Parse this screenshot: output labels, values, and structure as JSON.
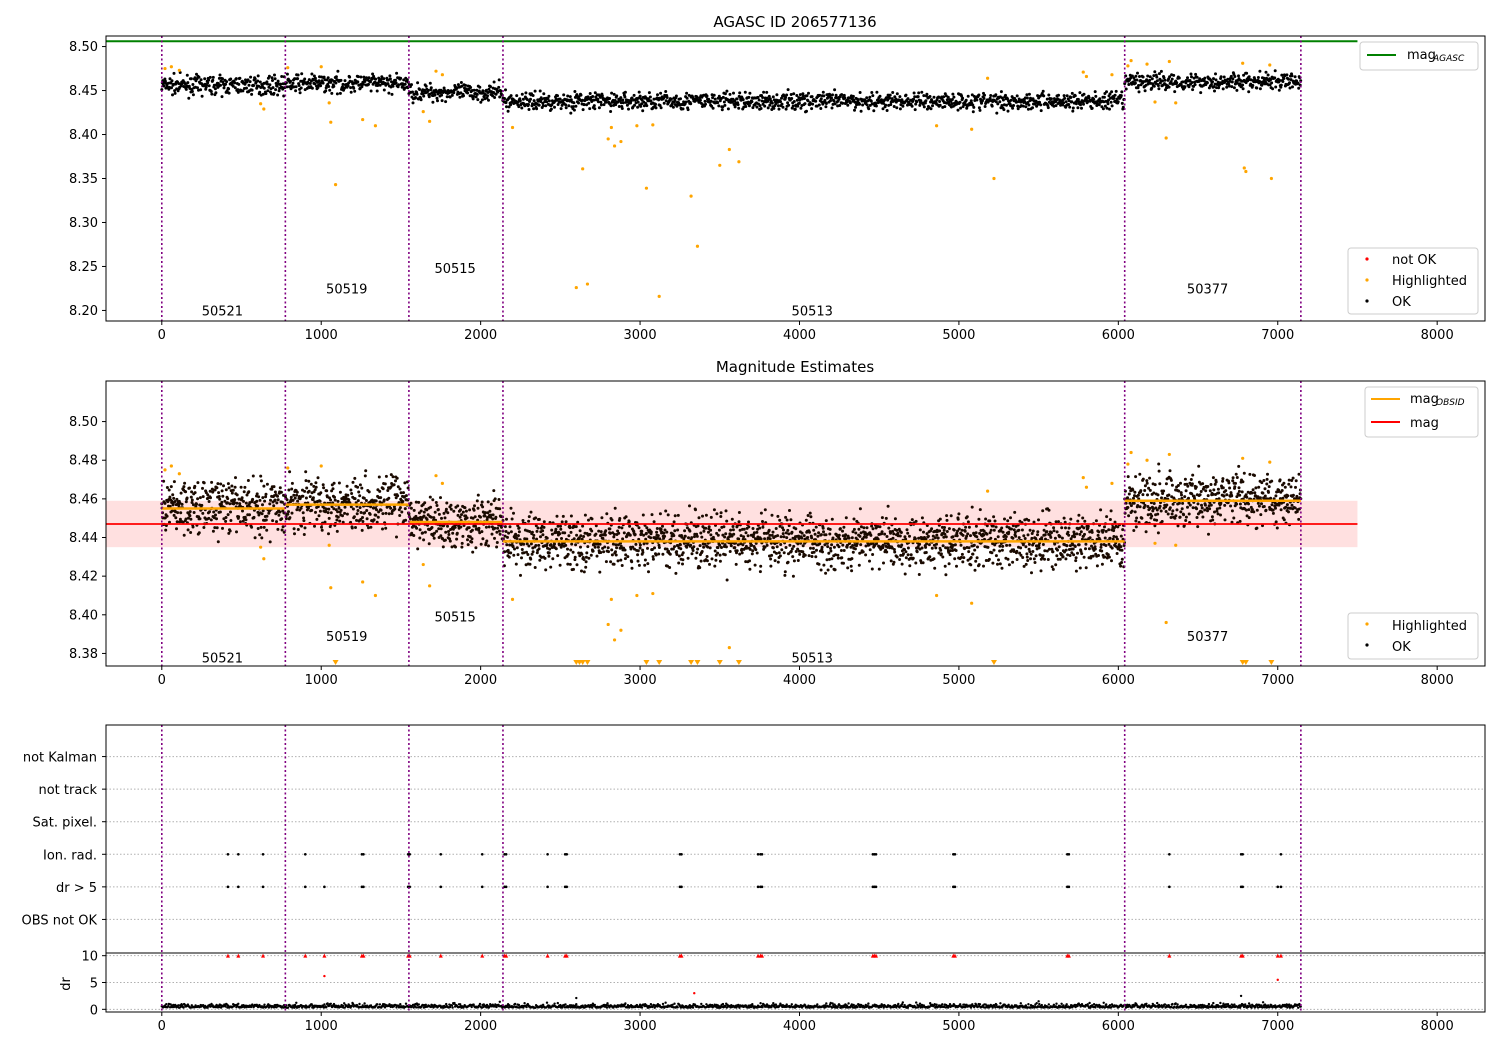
{
  "chart_data": [
    {
      "type": "scatter",
      "title": "AGASC ID 206577136",
      "xlim": [
        -350,
        8300
      ],
      "ylim": [
        8.188,
        8.512
      ],
      "x_ticks": [
        0,
        1000,
        2000,
        3000,
        4000,
        5000,
        6000,
        7000,
        8000
      ],
      "y_ticks": [
        8.2,
        8.25,
        8.3,
        8.35,
        8.4,
        8.45,
        8.5
      ],
      "mag_agasc": {
        "value": 8.506,
        "x_range": [
          -350,
          7500
        ],
        "color": "#008000"
      },
      "obsid_boundaries": [
        0,
        775,
        1550,
        2140,
        6040,
        7145
      ],
      "obsid_labels": [
        {
          "text": "50521",
          "x": 380,
          "y": 8.2
        },
        {
          "text": "50519",
          "x": 1160,
          "y": 8.225
        },
        {
          "text": "50515",
          "x": 1840,
          "y": 8.248
        },
        {
          "text": "50513",
          "x": 4080,
          "y": 8.2
        },
        {
          "text": "50377",
          "x": 6560,
          "y": 8.225
        }
      ],
      "legend_top": [
        {
          "label": "mag",
          "sub": "AGASC",
          "kind": "line",
          "color": "#008000"
        }
      ],
      "legend_bottom": [
        {
          "label": "not OK",
          "kind": "dot",
          "color": "#ff0000"
        },
        {
          "label": "Highlighted",
          "kind": "dot",
          "color": "#ffa500"
        },
        {
          "label": "OK",
          "kind": "dot",
          "color": "#000000"
        }
      ],
      "ok_segments": [
        {
          "x": [
            0,
            775
          ],
          "mean": 8.456,
          "spread": 0.009
        },
        {
          "x": [
            775,
            1550
          ],
          "mean": 8.458,
          "spread": 0.009
        },
        {
          "x": [
            1550,
            2140
          ],
          "mean": 8.448,
          "spread": 0.009
        },
        {
          "x": [
            2140,
            6040
          ],
          "mean": 8.438,
          "spread": 0.009
        },
        {
          "x": [
            6040,
            7145
          ],
          "mean": 8.46,
          "spread": 0.009
        }
      ],
      "highlighted_points": [
        [
          20,
          8.475
        ],
        [
          60,
          8.477
        ],
        [
          110,
          8.473
        ],
        [
          620,
          8.435
        ],
        [
          640,
          8.429
        ],
        [
          790,
          8.476
        ],
        [
          1000,
          8.477
        ],
        [
          1050,
          8.436
        ],
        [
          1060,
          8.414
        ],
        [
          1090,
          8.343
        ],
        [
          1260,
          8.417
        ],
        [
          1340,
          8.41
        ],
        [
          1640,
          8.426
        ],
        [
          1680,
          8.415
        ],
        [
          1720,
          8.472
        ],
        [
          1760,
          8.468
        ],
        [
          2200,
          8.408
        ],
        [
          2600,
          8.226
        ],
        [
          2640,
          8.361
        ],
        [
          2670,
          8.23
        ],
        [
          2800,
          8.395
        ],
        [
          2820,
          8.408
        ],
        [
          2840,
          8.387
        ],
        [
          2880,
          8.392
        ],
        [
          2980,
          8.41
        ],
        [
          3040,
          8.339
        ],
        [
          3080,
          8.411
        ],
        [
          3120,
          8.216
        ],
        [
          3320,
          8.33
        ],
        [
          3360,
          8.273
        ],
        [
          3500,
          8.365
        ],
        [
          3560,
          8.383
        ],
        [
          3620,
          8.369
        ],
        [
          4860,
          8.41
        ],
        [
          5080,
          8.406
        ],
        [
          5180,
          8.464
        ],
        [
          5220,
          8.35
        ],
        [
          5780,
          8.471
        ],
        [
          5800,
          8.466
        ],
        [
          5960,
          8.468
        ],
        [
          6060,
          8.478
        ],
        [
          6080,
          8.484
        ],
        [
          6180,
          8.48
        ],
        [
          6230,
          8.437
        ],
        [
          6300,
          8.396
        ],
        [
          6320,
          8.483
        ],
        [
          6360,
          8.436
        ],
        [
          6780,
          8.481
        ],
        [
          6790,
          8.362
        ],
        [
          6800,
          8.358
        ],
        [
          6950,
          8.479
        ],
        [
          6960,
          8.35
        ]
      ]
    },
    {
      "type": "scatter",
      "title": "Magnitude Estimates",
      "xlim": [
        -350,
        8300
      ],
      "ylim": [
        8.3735,
        8.521
      ],
      "x_ticks": [
        0,
        1000,
        2000,
        3000,
        4000,
        5000,
        6000,
        7000,
        8000
      ],
      "y_ticks": [
        8.38,
        8.4,
        8.42,
        8.44,
        8.46,
        8.48,
        8.5
      ],
      "mag": {
        "value": 8.447,
        "band": [
          8.435,
          8.459
        ],
        "x_range": [
          -350,
          7500
        ],
        "color": "#ff0000"
      },
      "mag_obsid": [
        {
          "x": [
            0,
            775
          ],
          "value": 8.455
        },
        {
          "x": [
            775,
            1550
          ],
          "value": 8.457
        },
        {
          "x": [
            1550,
            2140
          ],
          "value": 8.448
        },
        {
          "x": [
            2140,
            6040
          ],
          "value": 8.438
        },
        {
          "x": [
            6040,
            7145
          ],
          "value": 8.459
        }
      ],
      "mag_obsid_color": "#ffa500",
      "obsid_labels": [
        {
          "text": "50521",
          "x": 380,
          "y": 8.378
        },
        {
          "text": "50519",
          "x": 1160,
          "y": 8.389
        },
        {
          "text": "50515",
          "x": 1840,
          "y": 8.399
        },
        {
          "text": "50513",
          "x": 4080,
          "y": 8.378
        },
        {
          "text": "50377",
          "x": 6560,
          "y": 8.389
        }
      ],
      "legend_top": [
        {
          "label": "mag",
          "sub": "OBSID",
          "kind": "line",
          "color": "#ffa500"
        },
        {
          "label": "mag",
          "sub": "",
          "kind": "line",
          "color": "#ff0000"
        }
      ],
      "legend_bottom": [
        {
          "label": "Highlighted",
          "kind": "dot",
          "color": "#ffa500"
        },
        {
          "label": "OK",
          "kind": "dot",
          "color": "#000000"
        }
      ],
      "clipped_markers_x": [
        1090,
        2600,
        2620,
        2640,
        2670,
        3040,
        3120,
        3320,
        3360,
        3500,
        3620,
        5220,
        6780,
        6800,
        6960
      ]
    },
    {
      "type": "scatter",
      "title": "",
      "xlim": [
        -350,
        8300
      ],
      "x_ticks": [
        0,
        1000,
        2000,
        3000,
        4000,
        5000,
        6000,
        7000,
        8000
      ],
      "flag_rows": [
        "not Kalman",
        "not track",
        "Sat. pixel.",
        "Ion. rad.",
        "dr > 5",
        "OBS not OK"
      ],
      "flag_points": {
        "Ion. rad.": [
          415,
          480,
          635,
          900,
          1255,
          1265,
          1545,
          1555,
          1750,
          2010,
          2150,
          2160,
          2420,
          2530,
          2540,
          3250,
          3260,
          3740,
          3755,
          3765,
          4460,
          4470,
          4480,
          4965,
          4975,
          5680,
          5690,
          6320,
          6770,
          6780,
          7020
        ],
        "dr > 5": [
          415,
          480,
          635,
          900,
          1020,
          1255,
          1265,
          1545,
          1555,
          1750,
          2010,
          2150,
          2160,
          2420,
          2530,
          2540,
          3250,
          3260,
          3740,
          3755,
          3765,
          4460,
          4470,
          4480,
          4965,
          4975,
          5680,
          5690,
          6320,
          6770,
          6780,
          7000,
          7020
        ]
      },
      "dr_ylabel": "dr",
      "dr_ylim": [
        -0.5,
        10.5
      ],
      "dr_y_ticks": [
        0,
        5,
        10
      ],
      "dr_clip_value": 10,
      "dr_spikes": [
        [
          1020,
          6.2
        ],
        [
          3340,
          3.0
        ],
        [
          7000,
          5.5
        ],
        [
          6770,
          2.5
        ],
        [
          2600,
          2.1
        ],
        [
          5500,
          1.5
        ]
      ]
    }
  ]
}
